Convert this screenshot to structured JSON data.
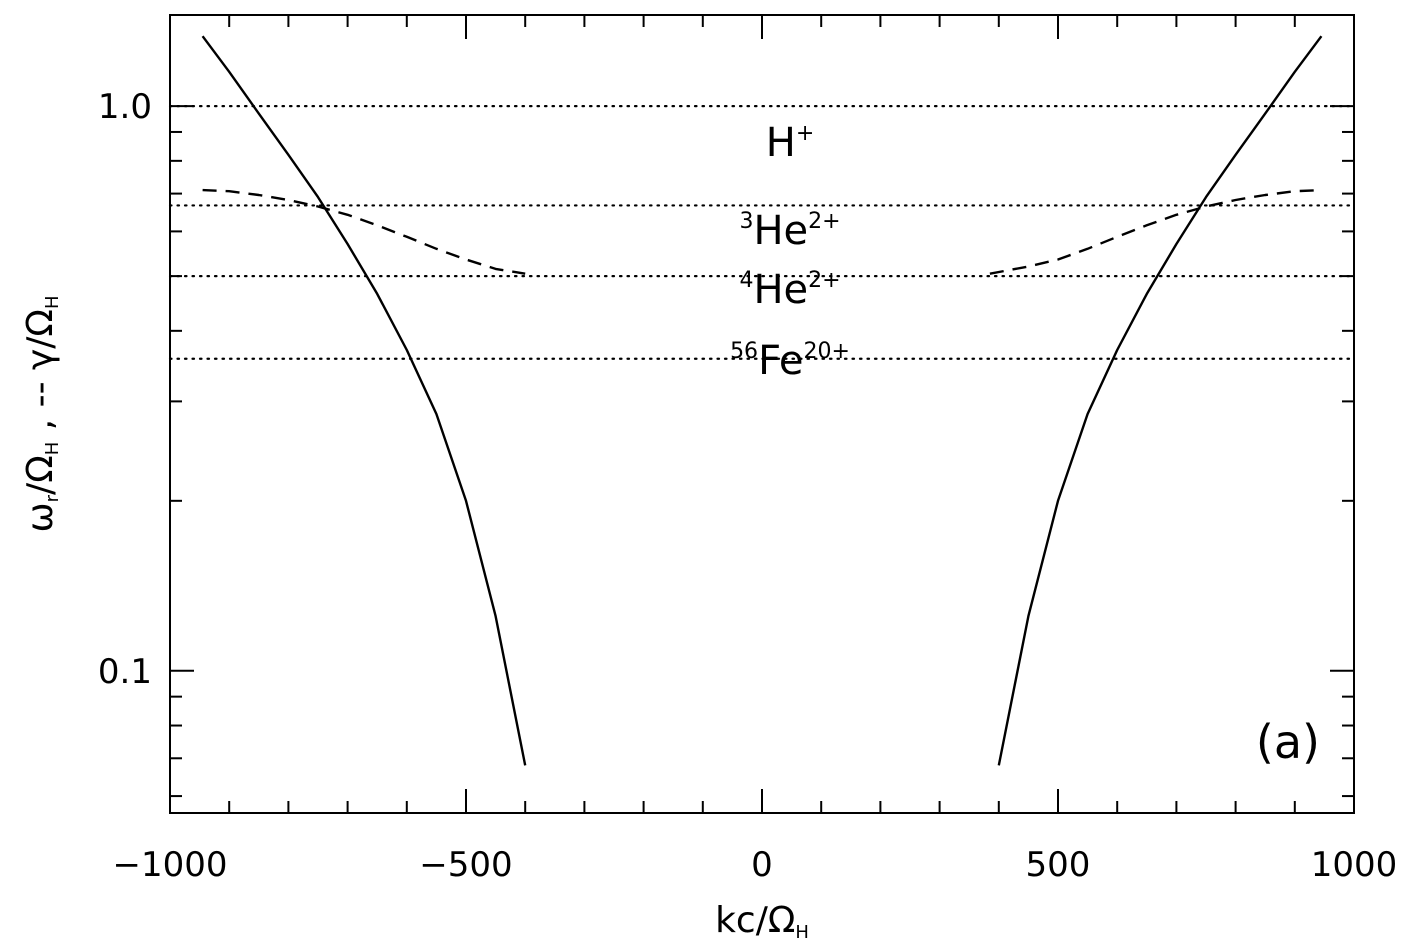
{
  "chart_data": {
    "type": "line",
    "panel_label": "(a)",
    "xlabel": {
      "main": "kc/Ω",
      "sub": "H"
    },
    "ylabel": {
      "p1": "ω",
      "p1sub": "r",
      "p2": "/Ω",
      "p2sub": "H",
      "p3": " , -- γ/Ω",
      "p3sub": "H"
    },
    "xlim": [
      -1000,
      1000
    ],
    "ylim": [
      0.056,
      1.45
    ],
    "yscale": "log",
    "x_ticks": [
      {
        "value": -1000,
        "label": "−1000"
      },
      {
        "value": -500,
        "label": "−500"
      },
      {
        "value": 0,
        "label": "0"
      },
      {
        "value": 500,
        "label": "500"
      },
      {
        "value": 1000,
        "label": "1000"
      }
    ],
    "y_ticks": [
      {
        "value": 0.1,
        "label": "0.1"
      },
      {
        "value": 1.0,
        "label": "1.0"
      }
    ],
    "reference_lines": [
      {
        "name": "H+",
        "y": 1.0,
        "label": {
          "base": "H",
          "sup": "+",
          "pre": ""
        }
      },
      {
        "name": "3He2+",
        "y": 0.667,
        "label": {
          "pre": "3",
          "base": "He",
          "sup": "2+"
        }
      },
      {
        "name": "4He2+",
        "y": 0.5,
        "label": {
          "pre": "4",
          "base": "He",
          "sup": "2+"
        }
      },
      {
        "name": "56Fe20+",
        "y": 0.357,
        "label": {
          "pre": "56",
          "base": "Fe",
          "sup": "20+"
        }
      }
    ],
    "series": [
      {
        "style": "solid",
        "x": [
          -945,
          -900,
          -850,
          -800,
          -750,
          -700,
          -650,
          -600,
          -550,
          -500,
          -450,
          -400
        ],
        "y": [
          1.33,
          1.15,
          0.97,
          0.82,
          0.69,
          0.57,
          0.465,
          0.37,
          0.285,
          0.2,
          0.125,
          0.068
        ]
      },
      {
        "style": "solid",
        "x": [
          400,
          450,
          500,
          550,
          600,
          650,
          700,
          750,
          800,
          850,
          900,
          945
        ],
        "y": [
          0.068,
          0.125,
          0.2,
          0.285,
          0.37,
          0.465,
          0.57,
          0.69,
          0.82,
          0.97,
          1.15,
          1.33
        ]
      },
      {
        "style": "dashed",
        "x": [
          -945,
          -900,
          -850,
          -800,
          -750,
          -700,
          -650,
          -600,
          -550,
          -500,
          -450,
          -400
        ],
        "y": [
          0.71,
          0.707,
          0.696,
          0.682,
          0.664,
          0.642,
          0.615,
          0.587,
          0.559,
          0.535,
          0.515,
          0.505
        ]
      },
      {
        "style": "dashed",
        "x": [
          385,
          450,
          500,
          550,
          600,
          650,
          700,
          750,
          800,
          850,
          900,
          945
        ],
        "y": [
          0.505,
          0.52,
          0.535,
          0.559,
          0.587,
          0.615,
          0.642,
          0.664,
          0.682,
          0.696,
          0.707,
          0.71
        ]
      }
    ]
  }
}
